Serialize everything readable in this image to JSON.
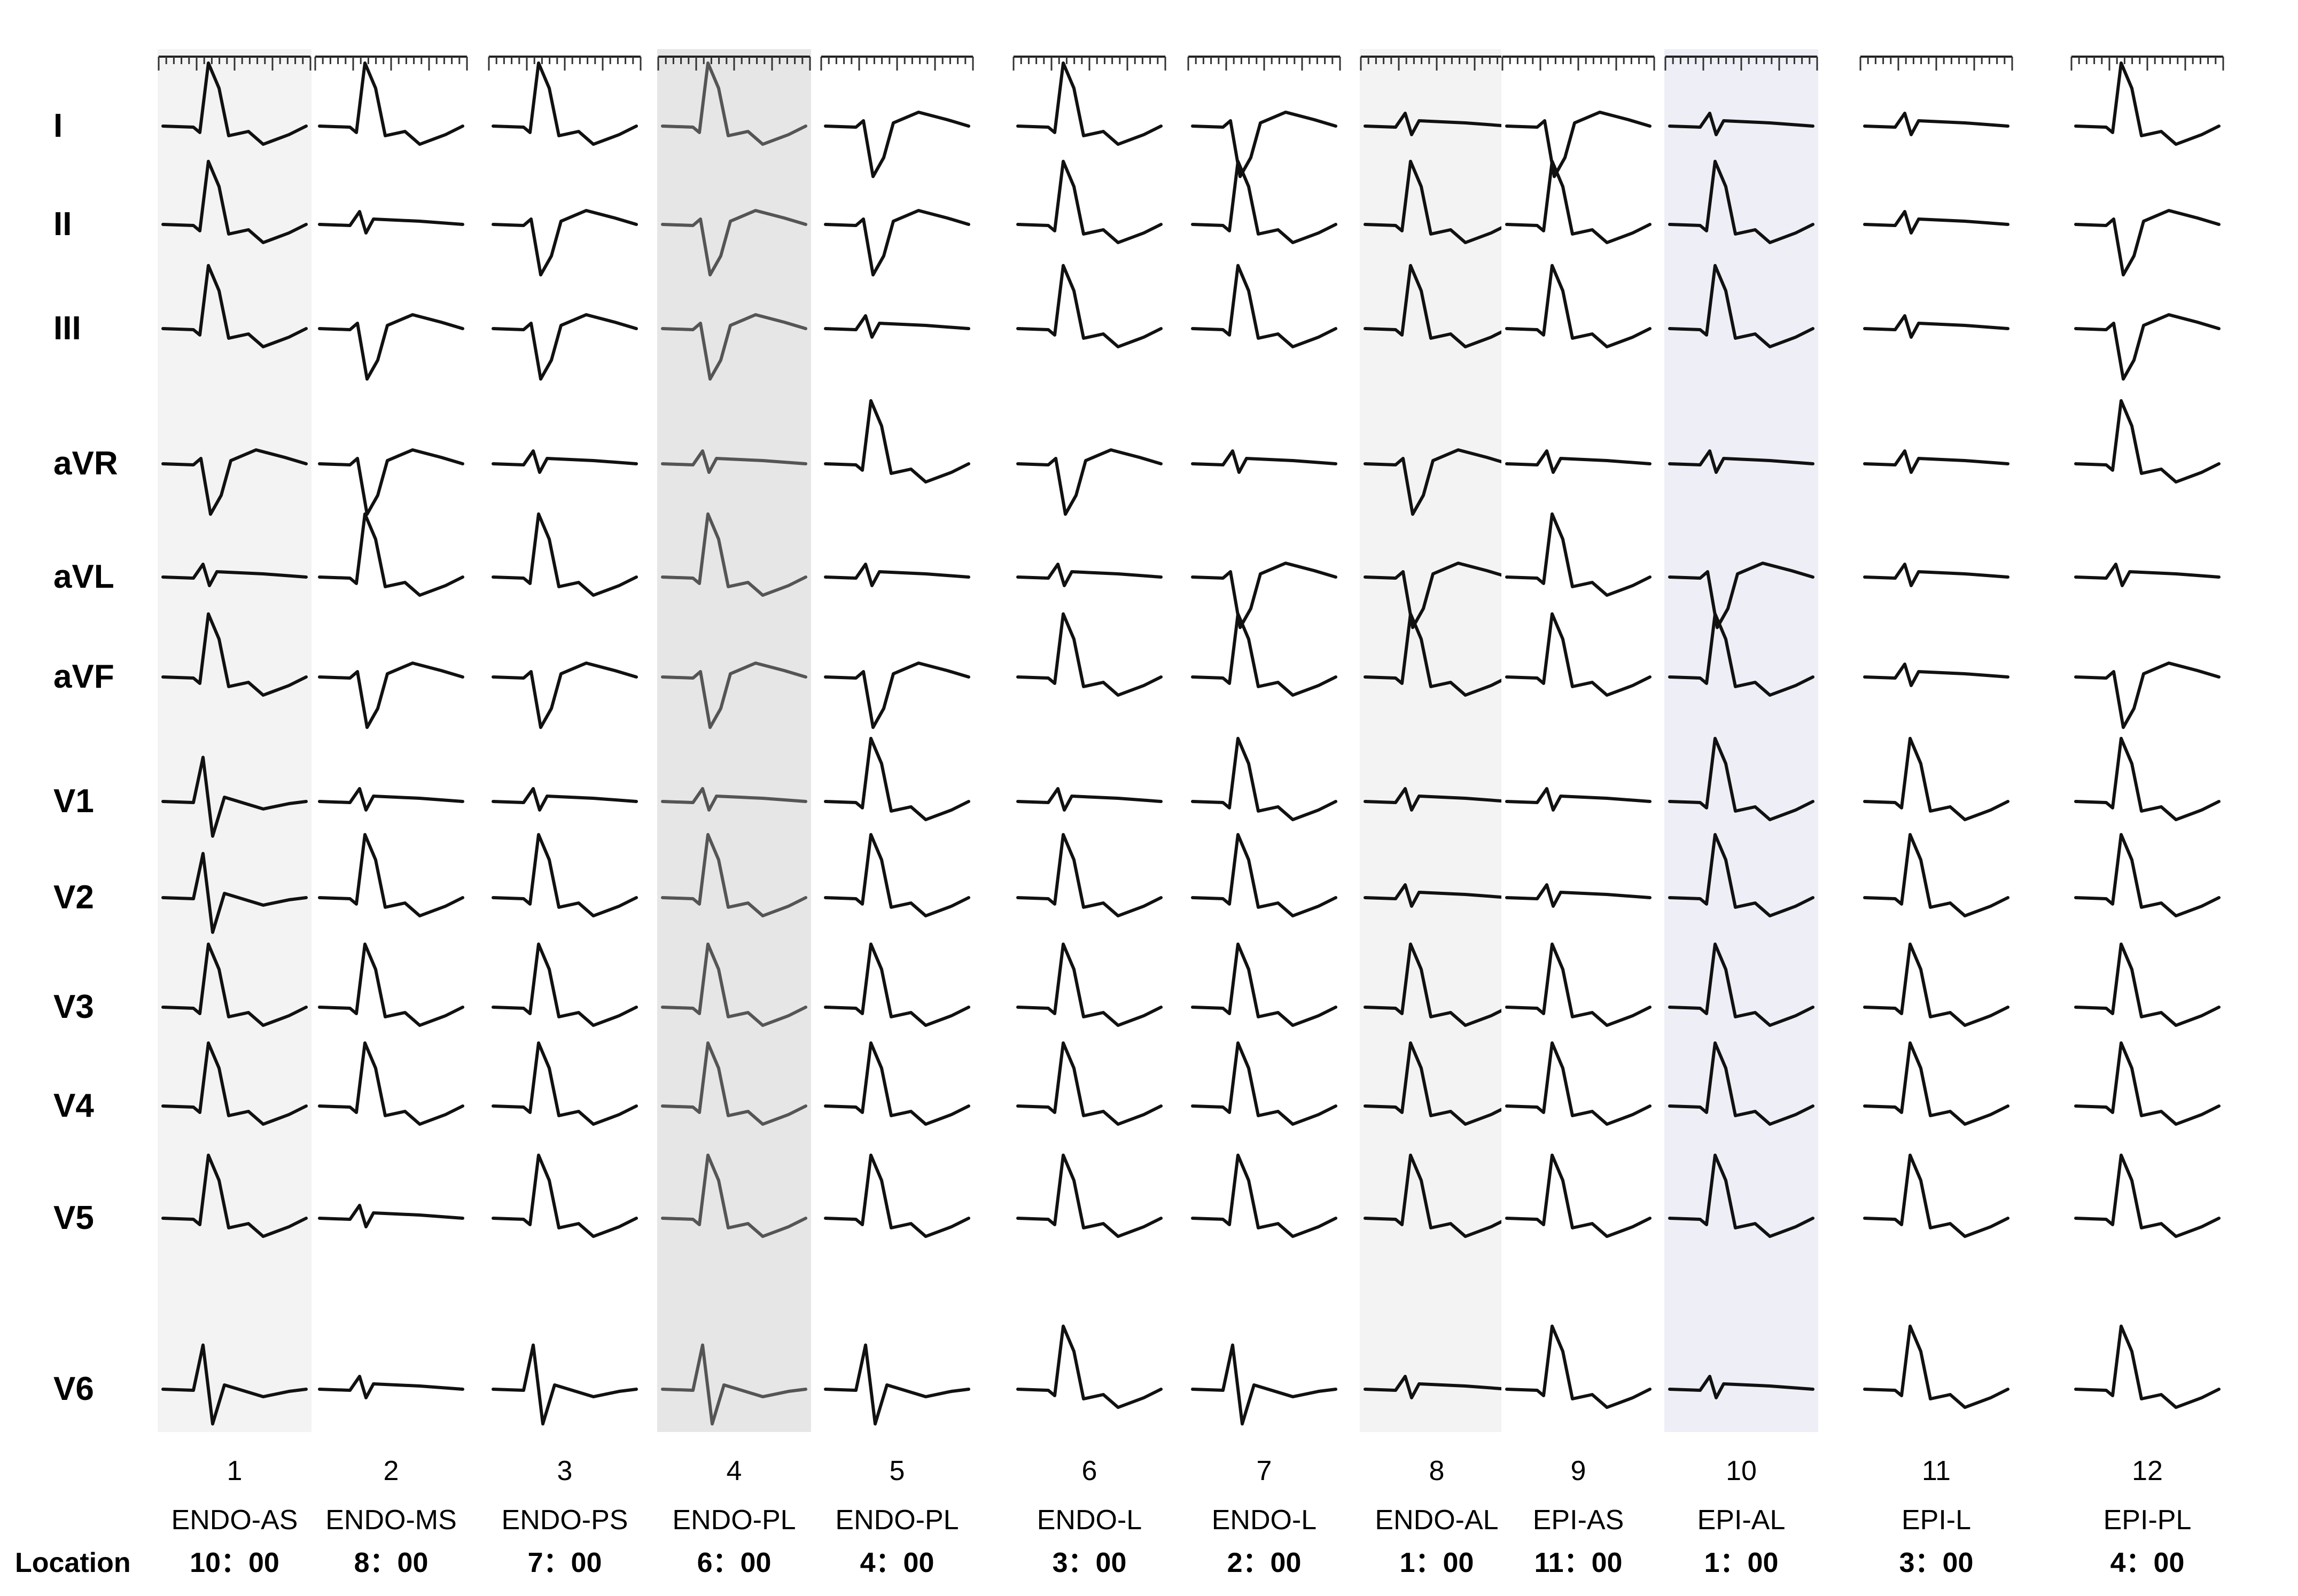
{
  "leads": [
    "I",
    "II",
    "III",
    "aVR",
    "aVL",
    "aVF",
    "V1",
    "V2",
    "V3",
    "V4",
    "V5",
    "V6"
  ],
  "location_label": "Location",
  "columns": [
    {
      "number": "1",
      "site": "ENDO-AS",
      "clock": "10：00",
      "background": "#f3f3f3",
      "shapes": [
        "up",
        "up",
        "up",
        "qs",
        "sm",
        "up",
        "rs",
        "rs",
        "up",
        "up",
        "up",
        "rs"
      ]
    },
    {
      "number": "2",
      "site": "ENDO-MS",
      "clock": "8：00",
      "background": "#ffffff",
      "shapes": [
        "up",
        "sm",
        "qs",
        "qs",
        "up",
        "qs",
        "sm",
        "up",
        "up",
        "up",
        "sm",
        "sm"
      ]
    },
    {
      "number": "3",
      "site": "ENDO-PS",
      "clock": "7：00",
      "background": "#ffffff",
      "shapes": [
        "up",
        "qs",
        "qs",
        "sm",
        "up",
        "qs",
        "sm",
        "up",
        "up",
        "up",
        "up",
        "rs"
      ]
    },
    {
      "number": "4",
      "site": "ENDO-PL",
      "clock": "6：00",
      "background": "#e6e6e6",
      "shapes": [
        "up",
        "qs",
        "qs",
        "sm",
        "up",
        "qs",
        "sm",
        "up",
        "up",
        "up",
        "up",
        "rs"
      ]
    },
    {
      "number": "5",
      "site": "ENDO-PL",
      "clock": "4：00",
      "background": "#ffffff",
      "shapes": [
        "qs",
        "qs",
        "sm",
        "up",
        "sm",
        "qs",
        "up",
        "up",
        "up",
        "up",
        "up",
        "rs"
      ]
    },
    {
      "number": "6",
      "site": "ENDO-L",
      "clock": "3：00",
      "background": "#ffffff",
      "shapes": [
        "up",
        "up",
        "up",
        "qs",
        "sm",
        "up",
        "sm",
        "up",
        "up",
        "up",
        "up",
        "up"
      ]
    },
    {
      "number": "7",
      "site": "ENDO-L",
      "clock": "2：00",
      "background": "#ffffff",
      "shapes": [
        "qs",
        "up",
        "up",
        "sm",
        "qs",
        "up",
        "up",
        "up",
        "up",
        "up",
        "up",
        "rs"
      ]
    },
    {
      "number": "8",
      "site": "ENDO-AL",
      "clock": "1：00",
      "background": "#f3f3f3",
      "shapes": [
        "sm",
        "up",
        "up",
        "qs",
        "qs",
        "up",
        "sm",
        "sm",
        "up",
        "up",
        "up",
        "sm"
      ]
    },
    {
      "number": "9",
      "site": "EPI-AS",
      "clock": "11：00",
      "background": "#ffffff",
      "shapes": [
        "qs",
        "up",
        "up",
        "sm",
        "up",
        "up",
        "sm",
        "sm",
        "up",
        "up",
        "up",
        "up"
      ]
    },
    {
      "number": "10",
      "site": "EPI-AL",
      "clock": "1：00",
      "background": "#eeeef6",
      "shapes": [
        "sm",
        "up",
        "up",
        "sm",
        "qs",
        "up",
        "up",
        "up",
        "up",
        "up",
        "up",
        "sm"
      ]
    },
    {
      "number": "11",
      "site": "EPI-L",
      "clock": "3：00",
      "background": "#ffffff",
      "shapes": [
        "sm",
        "sm",
        "sm",
        "sm",
        "sm",
        "sm",
        "up",
        "up",
        "up",
        "up",
        "up",
        "up"
      ]
    },
    {
      "number": "12",
      "site": "EPI-PL",
      "clock": "4：00",
      "background": "#ffffff",
      "shapes": [
        "up",
        "qs",
        "qs",
        "up",
        "sm",
        "qs",
        "up",
        "up",
        "up",
        "up",
        "up",
        "up"
      ]
    }
  ]
}
